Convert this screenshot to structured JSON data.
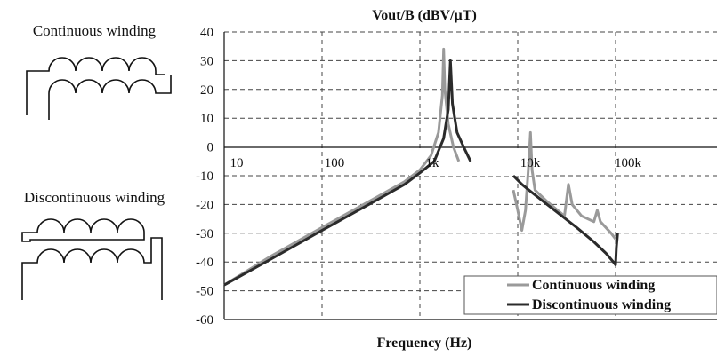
{
  "diagrams": {
    "continuous_label": "Continuous winding",
    "discontinuous_label": "Discontinuous winding"
  },
  "chart_data": {
    "type": "line",
    "title": "Vout/B  (dBV/µT)",
    "xlabel": "Frequency (Hz)",
    "ylabel": "",
    "x_scale": "log",
    "xlim": [
      10,
      200000
    ],
    "ylim": [
      -60,
      40
    ],
    "x_ticks": [
      10,
      100,
      1000,
      10000,
      100000
    ],
    "x_tick_labels": [
      "10",
      "100",
      "1k",
      "10k",
      "100k"
    ],
    "y_ticks": [
      40,
      30,
      20,
      10,
      0,
      -10,
      -20,
      -30,
      -40,
      -50,
      -60
    ],
    "y_tick_labels": [
      "40",
      "30",
      "20",
      "10",
      "0",
      "-10",
      "-20",
      "-30",
      "-40",
      "-50",
      "-60"
    ],
    "grid": true,
    "legend_position": "bottom-right",
    "series": [
      {
        "name": "Continuous winding",
        "color": "#9a9a9a",
        "points": [
          [
            10,
            -48
          ],
          [
            30,
            -38
          ],
          [
            100,
            -28
          ],
          [
            300,
            -19
          ],
          [
            700,
            -12
          ],
          [
            1000,
            -8
          ],
          [
            1300,
            -3
          ],
          [
            1550,
            5
          ],
          [
            1700,
            18
          ],
          [
            1750,
            34
          ],
          [
            1800,
            20
          ],
          [
            1950,
            8
          ],
          [
            2200,
            0
          ],
          [
            2500,
            -5
          ]
        ],
        "points_2": [
          [
            9000,
            -15
          ],
          [
            10000,
            -22
          ],
          [
            11000,
            -29
          ],
          [
            12000,
            -22
          ],
          [
            13000,
            -5
          ],
          [
            13500,
            5
          ],
          [
            14000,
            -8
          ],
          [
            15000,
            -15
          ],
          [
            20000,
            -19
          ],
          [
            30000,
            -24
          ],
          [
            33000,
            -13
          ],
          [
            36000,
            -20
          ],
          [
            45000,
            -24
          ],
          [
            60000,
            -26
          ],
          [
            65000,
            -22
          ],
          [
            70000,
            -26
          ],
          [
            90000,
            -30
          ],
          [
            100000,
            -32
          ]
        ]
      },
      {
        "name": "Discontinuous winding",
        "color": "#2b2b2b",
        "points": [
          [
            10,
            -48
          ],
          [
            30,
            -39
          ],
          [
            100,
            -29
          ],
          [
            300,
            -20
          ],
          [
            700,
            -13
          ],
          [
            1000,
            -9
          ],
          [
            1400,
            -5
          ],
          [
            1750,
            3
          ],
          [
            1950,
            13
          ],
          [
            2050,
            30
          ],
          [
            2150,
            15
          ],
          [
            2400,
            5
          ],
          [
            2800,
            0
          ],
          [
            3300,
            -5
          ]
        ],
        "points_2": [
          [
            9000,
            -10
          ],
          [
            11000,
            -13
          ],
          [
            13000,
            -15
          ],
          [
            20000,
            -20
          ],
          [
            40000,
            -28
          ],
          [
            60000,
            -33
          ],
          [
            80000,
            -37
          ],
          [
            95000,
            -40
          ],
          [
            100000,
            -41
          ],
          [
            102000,
            -35
          ],
          [
            105000,
            -30
          ]
        ]
      }
    ]
  }
}
